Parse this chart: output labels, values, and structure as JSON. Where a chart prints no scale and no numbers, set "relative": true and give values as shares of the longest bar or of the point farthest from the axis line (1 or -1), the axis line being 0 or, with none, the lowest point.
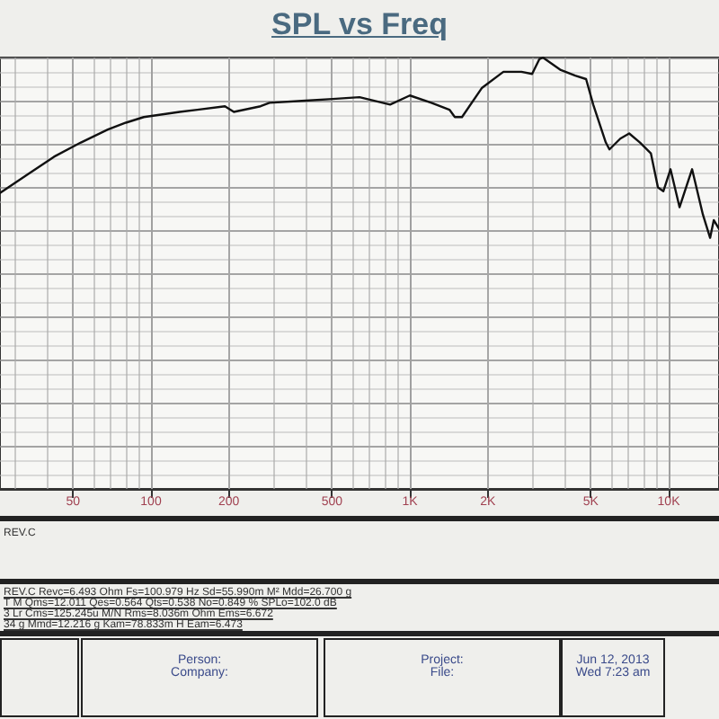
{
  "chart_data": {
    "type": "line",
    "title": "SPL vs Freq",
    "relative": true,
    "x": [
      26.1,
      33.2,
      42.2,
      53.6,
      68.1,
      80,
      93.8,
      129,
      151,
      193,
      209,
      265,
      287,
      395,
      503,
      639,
      839,
      1000,
      1211,
      1422,
      1492,
      1590,
      1895,
      2298,
      2697,
      2967,
      3162,
      3266,
      3830,
      4353,
      4795,
      5109,
      5714,
      5902,
      6500,
      7036,
      7745,
      8531,
      9086,
      9532,
      10160,
      11010,
      12310,
      13550,
      14450,
      14930,
      15640
    ],
    "series": [
      {
        "color": "#111111",
        "values": [
          0.686,
          0.728,
          0.77,
          0.803,
          0.833,
          0.849,
          0.862,
          0.874,
          0.879,
          0.887,
          0.874,
          0.887,
          0.895,
          0.9,
          0.904,
          0.908,
          0.891,
          0.912,
          0.895,
          0.879,
          0.862,
          0.862,
          0.929,
          0.967,
          0.967,
          0.962,
          0.996,
          1.0,
          0.971,
          0.958,
          0.95,
          0.891,
          0.803,
          0.787,
          0.812,
          0.824,
          0.803,
          0.778,
          0.699,
          0.69,
          0.741,
          0.653,
          0.741,
          0.636,
          0.582,
          0.623,
          0.603
        ]
      }
    ],
    "log": "x",
    "xlim": [
      26.1,
      15640
    ],
    "xticks": [
      50,
      100,
      200,
      500,
      {
        "value": 1000,
        "label": "1K"
      },
      {
        "value": 2000,
        "label": "2K"
      },
      {
        "value": 5000,
        "label": "5K"
      },
      {
        "value": 10000,
        "label": "10K"
      }
    ],
    "grid": true,
    "marker": "none",
    "line_style": "solid",
    "annotations": [
      "REV.C",
      "REV.C Revc=6.493 Ohm  Fs=100.979 Hz  Sd=55.990m M²  Mdd=26.700 g",
      "T M  Qms=12.011  Qes=0.564  Qts=0.538  No=0.849 %  SPLo=102.0 dB",
      "3 Lr  Cms=125.245u M/N  Rms=8.036m Ohm  Ems=6.672",
      "34 g  Mmd=12.216 g  Kam=78.833m H  Eam=6.473",
      "Person:",
      "Company:",
      "Project:",
      "File:",
      "Jun 12, 2013",
      "Wed 7:23 am"
    ]
  }
}
